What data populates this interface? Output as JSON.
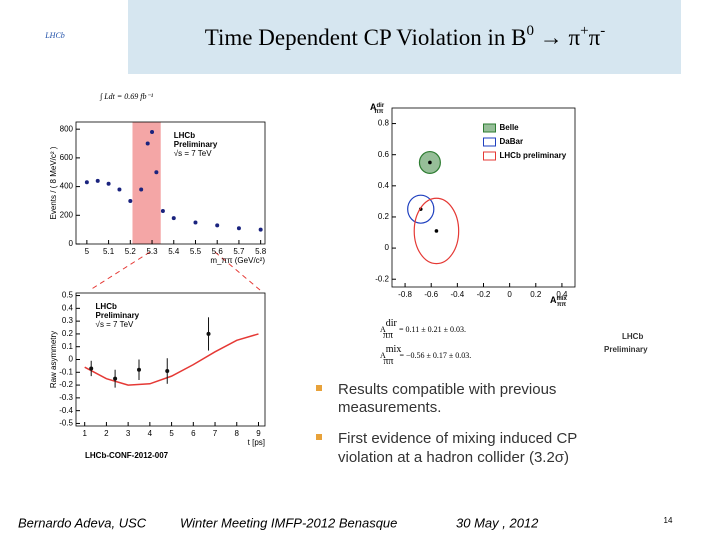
{
  "header": {
    "logo": "LHCb",
    "title": [
      "Time Dependent CP Violation in B",
      "0",
      " → π",
      "+",
      "π",
      "-"
    ]
  },
  "luminosity": "∫ Ldt = 0.69 fb⁻¹",
  "chart_data": [
    {
      "type": "scatter",
      "x": [
        5.0,
        5.05,
        5.1,
        5.15,
        5.2,
        5.25,
        5.28,
        5.3,
        5.32,
        5.35,
        5.4,
        5.5,
        5.6,
        5.7,
        5.8
      ],
      "values": [
        430,
        440,
        420,
        380,
        300,
        380,
        700,
        780,
        500,
        230,
        180,
        150,
        130,
        110,
        100
      ],
      "color": "#1a237e",
      "xlim": [
        4.95,
        5.82
      ],
      "ylim": [
        0,
        850
      ],
      "xticks": [
        5,
        5.1,
        5.2,
        5.3,
        5.4,
        5.5,
        5.6,
        5.7,
        5.8
      ],
      "yticks": [
        0,
        200,
        400,
        600,
        800
      ],
      "xlabel": "m_ππ (GeV/c²)",
      "ylabel": "Events / ( 8 MeV/c² )",
      "annotations": [
        "LHCb",
        "Preliminary",
        "√s = 7 TeV"
      ],
      "highlight": [
        5.21,
        5.34
      ],
      "highlight_color": "#f4a6a6"
    },
    {
      "type": "scatter",
      "x": [
        1.3,
        2.4,
        3.5,
        4.8,
        6.7
      ],
      "values": [
        -0.07,
        -0.15,
        -0.08,
        -0.09,
        0.2
      ],
      "errors": [
        0.06,
        0.07,
        0.08,
        0.1,
        0.13
      ],
      "color": "#111111",
      "fit": {
        "x": [
          1,
          2,
          3,
          4,
          5,
          6,
          7,
          8,
          9
        ],
        "values": [
          -0.06,
          -0.15,
          -0.2,
          -0.19,
          -0.13,
          -0.04,
          0.06,
          0.15,
          0.2
        ],
        "color": "#e53935"
      },
      "xlim": [
        0.6,
        9.3
      ],
      "ylim": [
        -0.52,
        0.52
      ],
      "xticks": [
        1,
        2,
        3,
        4,
        5,
        6,
        7,
        8,
        9
      ],
      "yticks": [
        0.5,
        0.4,
        0.3,
        0.2,
        0.1,
        0,
        -0.1,
        -0.2,
        -0.3,
        -0.4,
        -0.5
      ],
      "xlabel": "t [ps]",
      "ylabel": "Raw asymmetry",
      "annotations": [
        "LHCb",
        "Preliminary",
        "√s = 7 TeV"
      ]
    },
    {
      "type": "ellipse",
      "xlim": [
        -0.9,
        0.5
      ],
      "ylim": [
        -0.25,
        0.9
      ],
      "xticks": [
        -0.8,
        -0.6,
        -0.4,
        -0.2,
        0,
        0.2,
        0.4
      ],
      "yticks": [
        -0.2,
        0,
        0.2,
        0.4,
        0.6,
        0.8
      ],
      "xlabel": [
        "A",
        "mix",
        "ππ"
      ],
      "ylabel": [
        "A",
        "dir",
        "ππ"
      ],
      "series": [
        {
          "name": "Belle",
          "color": "#2e7d32",
          "x": -0.61,
          "value": 0.55,
          "x_error": 0.08,
          "y_error": 0.07
        },
        {
          "name": "DaBar",
          "color": "#1e3fbf",
          "x": -0.68,
          "value": 0.25,
          "x_error": 0.1,
          "y_error": 0.09
        },
        {
          "name": "LHCb preliminary",
          "color": "#e53935",
          "x": -0.56,
          "value": 0.11,
          "x_error": 0.17,
          "y_error": 0.21
        }
      ]
    }
  ],
  "caption": "LHCb-CONF-2012-007",
  "results": [
    {
      "symbol": "A",
      "sup": "dir",
      "sub": "ππ",
      "text": "= 0.11 ± 0.21 ± 0.03."
    },
    {
      "symbol": "A",
      "sup": "mix",
      "sub": "ππ",
      "text": "= −0.56 ± 0.17 ± 0.03."
    }
  ],
  "results_label": [
    "LHCb",
    "Preliminary"
  ],
  "bullets": [
    [
      "Results compatible with  previous",
      "measurements."
    ],
    [
      "First evidence of mixing induced CP",
      "violation at a hadron collider (3.2σ)"
    ]
  ],
  "footer": {
    "author": "Bernardo Adeva, USC",
    "event": "Winter Meeting IMFP-2012  Benasque",
    "date": "30 May , 2012",
    "page": "14"
  }
}
